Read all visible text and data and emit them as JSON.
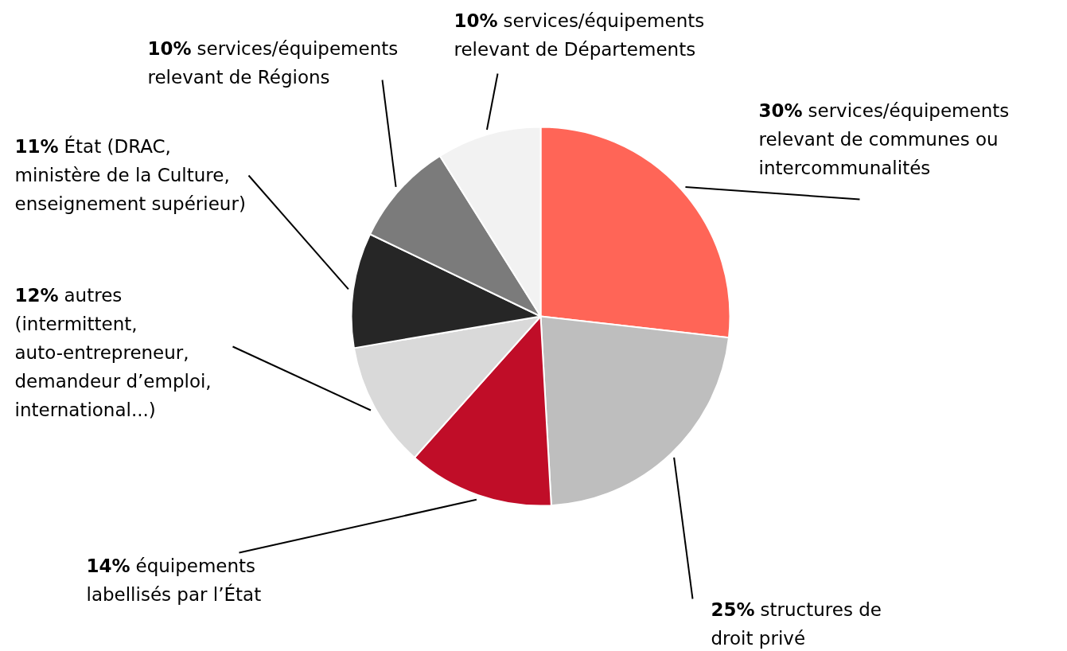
{
  "chart_data": {
    "type": "pie",
    "categories": [
      "services/équipements\nrelevant de communes ou\nintercommunalités",
      "structures de\ndroit privé",
      "équipements\nlabellisés par l’État",
      "autres\n(intermittent,\nauto-entrepreneur,\ndemandeur d’emploi,\ninternational...)",
      "État (DRAC,\nministère de la Culture,\nenseignement supérieur)",
      "services/équipements\nrelevant de Régions",
      "services/équipements\nrelevant de Départements"
    ],
    "values": [
      30,
      25,
      14,
      12,
      11,
      10,
      10
    ],
    "value_labels": [
      "30%",
      "25%",
      "14%",
      "12%",
      "11%",
      "10%",
      "10%"
    ],
    "colors": [
      "#ff6557",
      "#bebebe",
      "#c00d28",
      "#d9d9d9",
      "#262626",
      "#7b7b7b",
      "#f2f2f2"
    ],
    "legend": false
  }
}
